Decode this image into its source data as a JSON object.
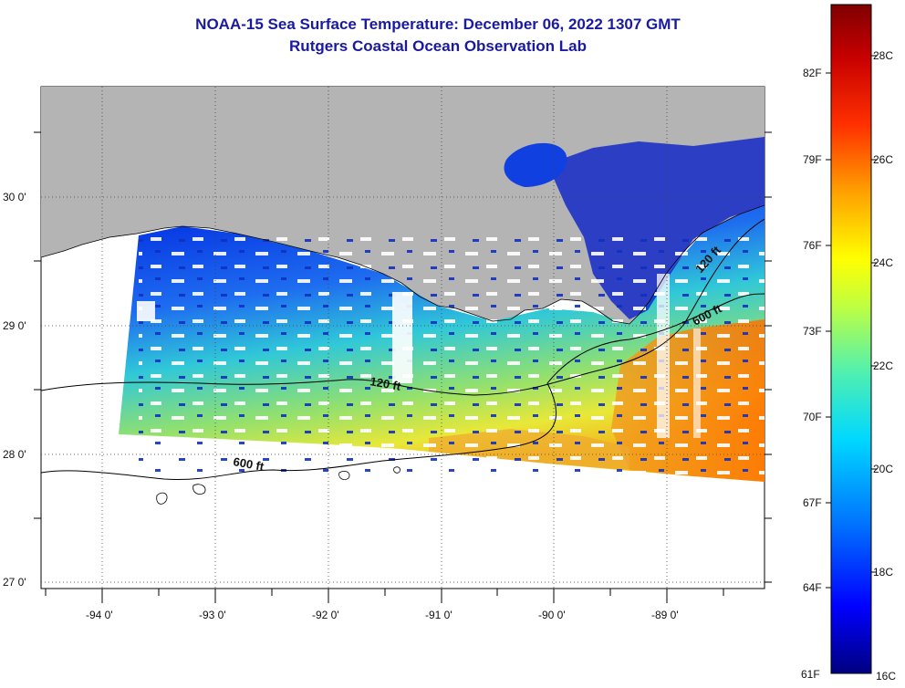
{
  "title": "NOAA-15 Sea Surface Temperature:  December 06, 2022 1307 GMT",
  "subtitle": "Rutgers Coastal Ocean Observation Lab",
  "lon_labels": [
    "-94 0'",
    "-93 0'",
    "-92 0'",
    "-91 0'",
    "-90 0'",
    "-89 0'"
  ],
  "lat_labels": [
    "30 0'",
    "29 0'",
    "28 0'",
    "27 0'"
  ],
  "contours": {
    "c120_a": "120 ft",
    "c120_b": "120 ft",
    "c600_a": "600 ft",
    "c600_b": "600 ft"
  },
  "colorbar": {
    "fahrenheit": [
      "82F",
      "79F",
      "76F",
      "73F",
      "70F",
      "67F",
      "64F",
      "61F"
    ],
    "celsius": [
      "28C",
      "26C",
      "24C",
      "22C",
      "20C",
      "18C",
      "16C"
    ],
    "colors": [
      "#000080",
      "#0000ff",
      "#0080ff",
      "#00e0ff",
      "#60ffa0",
      "#c0ff40",
      "#ffff00",
      "#ffa000",
      "#ff4000",
      "#d00000",
      "#800000"
    ]
  },
  "colors": {
    "land": "#b4b4b4",
    "title": "#1a1aa0",
    "cloud": "#ffffff"
  }
}
